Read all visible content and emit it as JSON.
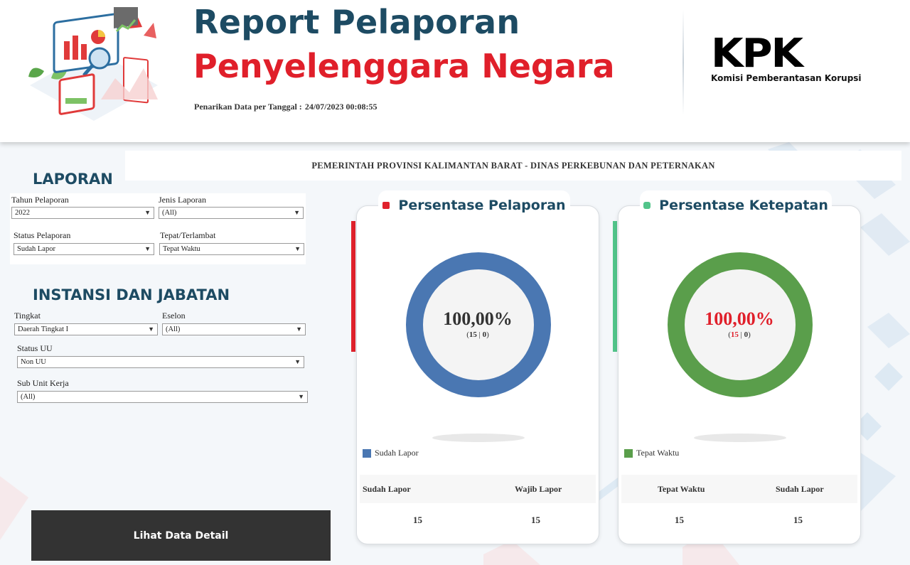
{
  "header": {
    "title_line1": "Report Pelaporan",
    "title_line2": "Penyelenggara Negara",
    "pull_date_label": "Penarikan Data per Tanggal :",
    "pull_date_value": "24/07/2023 00:08:55",
    "logo_mark": "KPK",
    "logo_text": "Komisi Pemberantasan Korupsi"
  },
  "agency": "PEMERINTAH PROVINSI KALIMANTAN BARAT - DINAS PERKEBUNAN DAN PETERNAKAN",
  "filters": {
    "laporan_title": "LAPORAN",
    "tahun": {
      "label": "Tahun Pelaporan",
      "value": "2022"
    },
    "jenis": {
      "label": "Jenis Laporan",
      "value": "(All)"
    },
    "status": {
      "label": "Status Pelaporan",
      "value": "Sudah Lapor"
    },
    "tepat": {
      "label": "Tepat/Terlambat",
      "value": "Tepat Waktu"
    },
    "instansi_title": "INSTANSI DAN JABATAN",
    "tingkat": {
      "label": "Tingkat",
      "value": "Daerah Tingkat I"
    },
    "eselon": {
      "label": "Eselon",
      "value": "(All)"
    },
    "status_uu": {
      "label": "Status UU",
      "value": "Non UU"
    },
    "sub_unit": {
      "label": "Sub Unit Kerja",
      "value": "(All)"
    }
  },
  "detail_button": "Lihat Data Detail",
  "cards": {
    "pelaporan": {
      "title": "Persentase Pelaporan",
      "percent": "100,00%",
      "count_a": "15",
      "count_b": "0",
      "legend": "Sudah Lapor",
      "col1": "Sudah Lapor",
      "col2": "Wajib Lapor",
      "val1": "15",
      "val2": "15",
      "ring_color": "#4a77b2",
      "accent_color": "#e0222c"
    },
    "ketepatan": {
      "title": "Persentase Ketepatan",
      "percent": "100,00%",
      "count_a": "15",
      "count_b": "0",
      "legend": "Tepat Waktu",
      "col1": "Tepat Waktu",
      "col2": "Sudah Lapor",
      "val1": "15",
      "val2": "15",
      "ring_color": "#5a9e4b",
      "accent_color": "#52c48a"
    }
  }
}
